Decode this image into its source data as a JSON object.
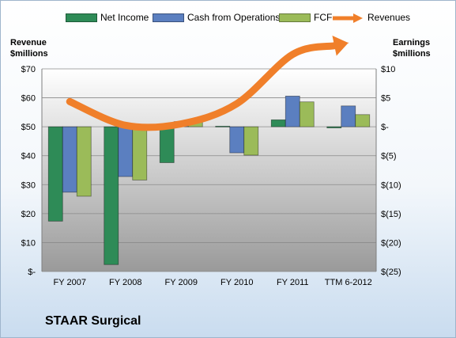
{
  "company_name": "STAAR Surgical",
  "legend": {
    "net_income": "Net Income",
    "cfo": "Cash from Operations",
    "fcf": "FCF",
    "revenues": "Revenues"
  },
  "colors": {
    "net_income": "#2e8b57",
    "cfo": "#5b7fc0",
    "fcf": "#9bbb59",
    "revenues": "#f07f2a"
  },
  "chart_data": {
    "type": "bar",
    "categories": [
      "FY 2007",
      "FY 2008",
      "FY 2009",
      "FY 2010",
      "FY 2011",
      "TTM 6-2012"
    ],
    "series": [
      {
        "name": "Net Income",
        "axis": "right",
        "values": [
          -16.3,
          -23.8,
          -6.2,
          0.1,
          1.2,
          -0.2
        ]
      },
      {
        "name": "Cash from Operations",
        "axis": "right",
        "values": [
          -11.3,
          -8.6,
          0.9,
          -4.5,
          5.3,
          3.6
        ]
      },
      {
        "name": "FCF",
        "axis": "right",
        "values": [
          -12,
          -9.2,
          0.8,
          -4.9,
          4.3,
          2.1
        ]
      },
      {
        "name": "Revenues",
        "axis": "left",
        "type": "line",
        "values": [
          58.7,
          50.5,
          51,
          58,
          75,
          79
        ]
      }
    ],
    "left_axis": {
      "title_line1": "Revenue",
      "title_line2": "$millions",
      "ylim": [
        0,
        70
      ],
      "ticks": [
        0,
        10,
        20,
        30,
        40,
        50,
        60,
        70
      ],
      "tick_labels": [
        "$-",
        "$10",
        "$20",
        "$30",
        "$40",
        "$50",
        "$60",
        "$70"
      ]
    },
    "right_axis": {
      "title_line1": "Earnings",
      "title_line2": "$millions",
      "ylim": [
        -25,
        10
      ],
      "ticks": [
        -25,
        -20,
        -15,
        -10,
        -5,
        0,
        5,
        10
      ],
      "tick_labels": [
        "$(25)",
        "$(20)",
        "$(15)",
        "$(10)",
        "$(5)",
        "$-",
        "$5",
        "$10"
      ]
    },
    "grid": true,
    "legend_position": "top"
  }
}
